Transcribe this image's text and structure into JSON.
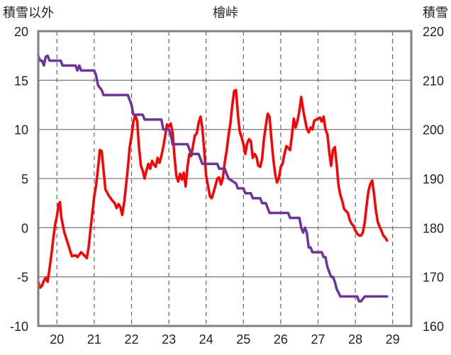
{
  "chart_data": {
    "type": "line",
    "title": "檜峠",
    "left_axis_label": "積雪以外",
    "right_axis_label": "積雪",
    "left_ylim": [
      -10,
      20
    ],
    "left_ticks": [
      20,
      15,
      10,
      5,
      0,
      -5,
      -10
    ],
    "right_ylim": [
      160,
      220
    ],
    "right_ticks": [
      220,
      210,
      200,
      190,
      180,
      170,
      160
    ],
    "x_range": [
      19.5,
      29.5
    ],
    "x_ticks": [
      "20",
      "21",
      "22",
      "23",
      "24",
      "25",
      "26",
      "27",
      "28",
      "29"
    ],
    "grid": "dashed vertical and horizontal lines",
    "series": [
      {
        "color": "#ff0000",
        "axis": "left",
        "points": [
          [
            19.5,
            -5.5
          ],
          [
            19.55,
            -6.1
          ],
          [
            19.6,
            -5.9
          ],
          [
            19.65,
            -5.4
          ],
          [
            19.7,
            -5.1
          ],
          [
            19.75,
            -5.5
          ],
          [
            19.8,
            -4.2
          ],
          [
            19.85,
            -2.8
          ],
          [
            19.9,
            -1.2
          ],
          [
            19.95,
            0.3
          ],
          [
            20.0,
            1.2
          ],
          [
            20.05,
            2.4
          ],
          [
            20.08,
            2.6
          ],
          [
            20.12,
            1.0
          ],
          [
            20.2,
            -0.5
          ],
          [
            20.3,
            -1.7
          ],
          [
            20.4,
            -2.9
          ],
          [
            20.5,
            -2.8
          ],
          [
            20.55,
            -3.0
          ],
          [
            20.65,
            -2.5
          ],
          [
            20.75,
            -2.9
          ],
          [
            20.8,
            -3.1
          ],
          [
            20.85,
            -2.0
          ],
          [
            20.9,
            -0.2
          ],
          [
            20.95,
            1.5
          ],
          [
            21.0,
            3.2
          ],
          [
            21.05,
            4.3
          ],
          [
            21.1,
            6.0
          ],
          [
            21.15,
            7.9
          ],
          [
            21.2,
            7.8
          ],
          [
            21.25,
            5.8
          ],
          [
            21.3,
            3.9
          ],
          [
            21.4,
            3.2
          ],
          [
            21.5,
            2.7
          ],
          [
            21.55,
            2.5
          ],
          [
            21.6,
            2.0
          ],
          [
            21.65,
            2.4
          ],
          [
            21.7,
            2.1
          ],
          [
            21.75,
            1.3
          ],
          [
            21.8,
            2.5
          ],
          [
            21.85,
            4.2
          ],
          [
            21.9,
            6.0
          ],
          [
            21.95,
            8.2
          ],
          [
            22.0,
            9.3
          ],
          [
            22.05,
            10.8
          ],
          [
            22.1,
            11.4
          ],
          [
            22.15,
            10.9
          ],
          [
            22.2,
            8.2
          ],
          [
            22.25,
            6.3
          ],
          [
            22.3,
            5.8
          ],
          [
            22.35,
            5.0
          ],
          [
            22.4,
            5.8
          ],
          [
            22.45,
            6.5
          ],
          [
            22.5,
            6.0
          ],
          [
            22.55,
            6.8
          ],
          [
            22.6,
            6.4
          ],
          [
            22.65,
            6.2
          ],
          [
            22.7,
            7.1
          ],
          [
            22.75,
            6.6
          ],
          [
            22.8,
            7.3
          ],
          [
            22.85,
            8.2
          ],
          [
            22.9,
            9.3
          ],
          [
            22.95,
            10.5
          ],
          [
            23.0,
            10.3
          ],
          [
            23.05,
            10.6
          ],
          [
            23.1,
            9.7
          ],
          [
            23.15,
            7.3
          ],
          [
            23.2,
            5.3
          ],
          [
            23.25,
            4.7
          ],
          [
            23.3,
            5.5
          ],
          [
            23.35,
            4.9
          ],
          [
            23.4,
            5.6
          ],
          [
            23.45,
            4.2
          ],
          [
            23.5,
            6.2
          ],
          [
            23.55,
            7.5
          ],
          [
            23.6,
            7.3
          ],
          [
            23.65,
            8.4
          ],
          [
            23.7,
            9.4
          ],
          [
            23.75,
            9.6
          ],
          [
            23.8,
            10.7
          ],
          [
            23.85,
            11.3
          ],
          [
            23.9,
            10.1
          ],
          [
            23.95,
            7.8
          ],
          [
            24.0,
            5.3
          ],
          [
            24.1,
            3.2
          ],
          [
            24.15,
            3.0
          ],
          [
            24.2,
            3.6
          ],
          [
            24.3,
            5.0
          ],
          [
            24.35,
            5.1
          ],
          [
            24.4,
            4.4
          ],
          [
            24.45,
            5.1
          ],
          [
            24.5,
            6.7
          ],
          [
            24.55,
            7.8
          ],
          [
            24.6,
            9.4
          ],
          [
            24.65,
            10.6
          ],
          [
            24.7,
            12.4
          ],
          [
            24.75,
            13.9
          ],
          [
            24.8,
            14.0
          ],
          [
            24.85,
            11.6
          ],
          [
            24.9,
            9.8
          ],
          [
            24.95,
            9.2
          ],
          [
            25.0,
            8.5
          ],
          [
            25.05,
            7.5
          ],
          [
            25.1,
            8.6
          ],
          [
            25.15,
            9.0
          ],
          [
            25.2,
            8.8
          ],
          [
            25.25,
            7.1
          ],
          [
            25.3,
            7.5
          ],
          [
            25.35,
            7.2
          ],
          [
            25.4,
            6.3
          ],
          [
            25.45,
            6.2
          ],
          [
            25.5,
            7.0
          ],
          [
            25.55,
            9.0
          ],
          [
            25.6,
            10.4
          ],
          [
            25.65,
            11.6
          ],
          [
            25.7,
            11.3
          ],
          [
            25.75,
            9.0
          ],
          [
            25.8,
            7.0
          ],
          [
            25.85,
            5.5
          ],
          [
            25.9,
            4.6
          ],
          [
            25.95,
            5.0
          ],
          [
            26.0,
            6.2
          ],
          [
            26.05,
            6.5
          ],
          [
            26.1,
            7.5
          ],
          [
            26.15,
            8.3
          ],
          [
            26.2,
            8.1
          ],
          [
            26.25,
            7.9
          ],
          [
            26.3,
            9.4
          ],
          [
            26.35,
            11.1
          ],
          [
            26.4,
            10.2
          ],
          [
            26.45,
            10.9
          ],
          [
            26.5,
            11.9
          ],
          [
            26.55,
            13.3
          ],
          [
            26.6,
            12.0
          ],
          [
            26.65,
            11.0
          ],
          [
            26.7,
            10.1
          ],
          [
            26.75,
            9.7
          ],
          [
            26.8,
            10.2
          ],
          [
            26.85,
            10.0
          ],
          [
            26.9,
            10.9
          ],
          [
            26.95,
            11.0
          ],
          [
            27.0,
            11.1
          ],
          [
            27.05,
            11.2
          ],
          [
            27.1,
            10.8
          ],
          [
            27.15,
            11.3
          ],
          [
            27.2,
            10.0
          ],
          [
            27.25,
            9.5
          ],
          [
            27.3,
            7.7
          ],
          [
            27.35,
            6.3
          ],
          [
            27.4,
            7.9
          ],
          [
            27.45,
            8.2
          ],
          [
            27.5,
            6.4
          ],
          [
            27.55,
            4.3
          ],
          [
            27.6,
            3.3
          ],
          [
            27.65,
            2.7
          ],
          [
            27.7,
            1.9
          ],
          [
            27.75,
            1.7
          ],
          [
            27.8,
            1.5
          ],
          [
            27.85,
            0.8
          ],
          [
            27.9,
            0.4
          ],
          [
            27.95,
            0.2
          ],
          [
            28.0,
            -0.3
          ],
          [
            28.05,
            -0.6
          ],
          [
            28.1,
            -0.8
          ],
          [
            28.15,
            -0.8
          ],
          [
            28.2,
            -0.5
          ],
          [
            28.25,
            0.5
          ],
          [
            28.3,
            2.2
          ],
          [
            28.35,
            3.7
          ],
          [
            28.4,
            4.4
          ],
          [
            28.45,
            4.8
          ],
          [
            28.5,
            3.5
          ],
          [
            28.55,
            1.8
          ],
          [
            28.6,
            0.6
          ],
          [
            28.65,
            0.1
          ],
          [
            28.7,
            -0.3
          ],
          [
            28.75,
            -0.8
          ],
          [
            28.8,
            -1.0
          ],
          [
            28.85,
            -1.3
          ]
        ]
      },
      {
        "color": "#7030a0",
        "axis": "right",
        "points": [
          [
            19.5,
            215
          ],
          [
            19.55,
            214
          ],
          [
            19.6,
            214
          ],
          [
            19.65,
            213
          ],
          [
            19.7,
            214.8
          ],
          [
            19.75,
            215
          ],
          [
            19.8,
            214
          ],
          [
            20.1,
            214
          ],
          [
            20.15,
            213
          ],
          [
            20.5,
            213
          ],
          [
            20.55,
            212
          ],
          [
            20.6,
            213
          ],
          [
            20.65,
            212
          ],
          [
            21.0,
            212
          ],
          [
            21.05,
            211
          ],
          [
            21.1,
            209
          ],
          [
            21.2,
            208
          ],
          [
            21.25,
            207
          ],
          [
            21.9,
            207
          ],
          [
            21.95,
            206
          ],
          [
            22.0,
            205
          ],
          [
            22.05,
            203
          ],
          [
            22.3,
            203
          ],
          [
            22.35,
            202
          ],
          [
            22.8,
            202
          ],
          [
            22.85,
            200
          ],
          [
            23.0,
            200
          ],
          [
            23.05,
            199
          ],
          [
            23.1,
            197
          ],
          [
            23.5,
            197
          ],
          [
            23.55,
            196
          ],
          [
            23.6,
            195
          ],
          [
            23.8,
            195
          ],
          [
            23.85,
            194
          ],
          [
            23.9,
            193
          ],
          [
            24.3,
            193
          ],
          [
            24.35,
            192
          ],
          [
            24.5,
            192
          ],
          [
            24.55,
            191
          ],
          [
            24.6,
            190
          ],
          [
            24.8,
            189
          ],
          [
            24.85,
            188
          ],
          [
            25.0,
            188
          ],
          [
            25.05,
            187
          ],
          [
            25.2,
            187
          ],
          [
            25.25,
            186
          ],
          [
            25.45,
            186
          ],
          [
            25.5,
            185
          ],
          [
            25.6,
            185
          ],
          [
            25.65,
            184
          ],
          [
            25.7,
            183
          ],
          [
            26.2,
            183
          ],
          [
            26.25,
            182
          ],
          [
            26.5,
            182
          ],
          [
            26.55,
            180
          ],
          [
            26.6,
            179
          ],
          [
            26.65,
            180
          ],
          [
            26.7,
            179
          ],
          [
            26.75,
            176
          ],
          [
            26.8,
            176
          ],
          [
            26.85,
            175
          ],
          [
            27.1,
            175
          ],
          [
            27.15,
            174
          ],
          [
            27.2,
            174
          ],
          [
            27.25,
            172
          ],
          [
            27.3,
            171
          ],
          [
            27.35,
            170
          ],
          [
            27.4,
            170
          ],
          [
            27.45,
            169
          ],
          [
            27.5,
            167.5
          ],
          [
            27.6,
            166
          ],
          [
            28.0,
            166
          ],
          [
            28.05,
            166
          ],
          [
            28.1,
            165
          ],
          [
            28.15,
            165
          ],
          [
            28.2,
            165.5
          ],
          [
            28.25,
            166
          ],
          [
            28.85,
            166
          ]
        ]
      }
    ]
  }
}
